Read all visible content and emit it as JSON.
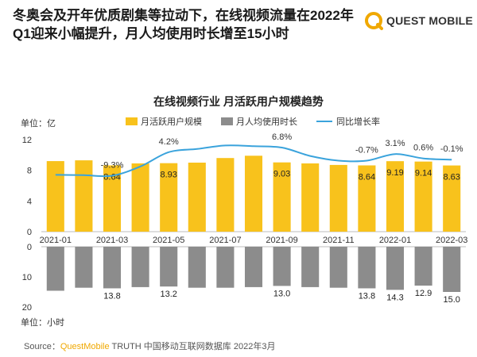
{
  "headline": "冬奥会及开年优质剧集等拉动下，在线视频流量在2022年Q1迎来小幅提升，月人均使用时长增至15小时",
  "logo": {
    "text": "QUEST MOBILE"
  },
  "source": {
    "prefix": "Source：",
    "brand": "QuestMobile",
    "rest": " TRUTH 中国移动互联网数据库 2022年3月"
  },
  "colors": {
    "bar_mau": "#f8c21c",
    "bar_time": "#8c8c8c",
    "line_growth": "#3aa3dc",
    "brand": "#f0a800"
  },
  "chart_data": {
    "type": "bar",
    "title": "在线视频行业 月活跃用户规模趋势",
    "categories": [
      "2021-01",
      "2021-02",
      "2021-03",
      "2021-04",
      "2021-05",
      "2021-06",
      "2021-07",
      "2021-08",
      "2021-09",
      "2021-10",
      "2021-11",
      "2021-12",
      "2022-01",
      "2022-02",
      "2022-03"
    ],
    "x_tick_labels": [
      "2021-01",
      "2021-03",
      "2021-05",
      "2021-07",
      "2021-09",
      "2021-11",
      "2022-01",
      "2022-03"
    ],
    "series": [
      {
        "name": "月活跃用户规模",
        "chart": "bar",
        "unit_label": "单位：亿",
        "values": [
          9.2,
          9.3,
          8.64,
          8.9,
          8.93,
          9.0,
          9.6,
          9.9,
          9.03,
          8.9,
          8.7,
          8.64,
          9.19,
          9.14,
          8.63
        ],
        "data_labels": [
          null,
          null,
          "8.64",
          null,
          "8.93",
          null,
          null,
          null,
          "9.03",
          null,
          null,
          "8.64",
          "9.19",
          "9.14",
          "8.63"
        ],
        "ylim": [
          0,
          12
        ],
        "yticks": [
          "0",
          "4",
          "8",
          "12"
        ]
      },
      {
        "name": "月人均使用时长",
        "chart": "bar",
        "unit_label": "单位：小时",
        "values": [
          14.6,
          13.6,
          13.8,
          13.4,
          13.2,
          13.6,
          13.6,
          13.4,
          13.0,
          13.4,
          13.6,
          13.8,
          14.3,
          12.9,
          15.0
        ],
        "data_labels": [
          null,
          null,
          "13.8",
          null,
          "13.2",
          null,
          null,
          null,
          "13.0",
          null,
          null,
          "13.8",
          "14.3",
          "12.9",
          "15.0"
        ],
        "ylim": [
          0,
          20
        ],
        "yticks": [
          "0",
          "10",
          "20"
        ]
      },
      {
        "name": "同比增长率",
        "chart": "line",
        "values": [
          -8.8,
          -9.0,
          -9.3,
          -4.0,
          4.2,
          6.0,
          8.0,
          7.6,
          6.8,
          2.0,
          -0.7,
          -0.7,
          3.1,
          0.6,
          -0.1
        ],
        "data_labels": [
          null,
          null,
          "-9.3%",
          null,
          "4.2%",
          null,
          null,
          null,
          "6.8%",
          null,
          null,
          "-0.7%",
          "3.1%",
          "0.6%",
          "-0.1%"
        ]
      }
    ],
    "grid": false,
    "legend_position": "top"
  }
}
